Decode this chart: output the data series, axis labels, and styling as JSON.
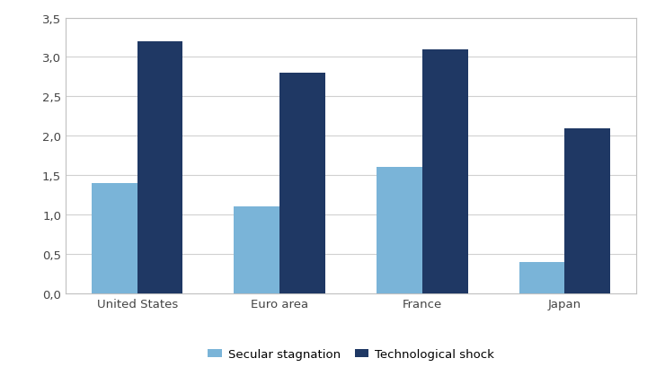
{
  "categories": [
    "United States",
    "Euro area",
    "France",
    "Japan"
  ],
  "secular_stagnation": [
    1.4,
    1.1,
    1.6,
    0.4
  ],
  "technological_shock": [
    3.2,
    2.8,
    3.1,
    2.1
  ],
  "color_secular": "#7ab4d8",
  "color_tech": "#1f3864",
  "legend_labels": [
    "Secular stagnation",
    "Technological shock"
  ],
  "ylim": [
    0,
    3.5
  ],
  "yticks": [
    0.0,
    0.5,
    1.0,
    1.5,
    2.0,
    2.5,
    3.0,
    3.5
  ],
  "ytick_labels": [
    "0,0",
    "0,5",
    "1,0",
    "1,5",
    "2,0",
    "2,5",
    "3,0",
    "3,5"
  ],
  "bar_width": 0.32,
  "background_color": "#ffffff",
  "plot_background": "#ffffff",
  "grid_color": "#d0d0d0",
  "spine_color": "#c0c0c0",
  "tick_fontsize": 9.5,
  "legend_fontsize": 9.5,
  "xlabel_fontsize": 9.5
}
